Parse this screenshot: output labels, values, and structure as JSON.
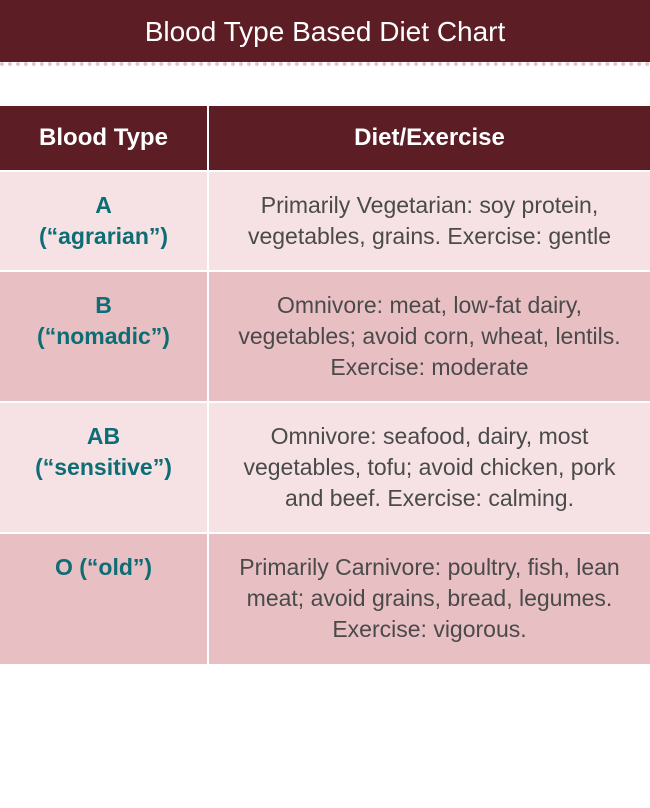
{
  "title": "Blood Type Based Diet Chart",
  "colors": {
    "title_bg": "#5c1d24",
    "title_text": "#ffffff",
    "divider": "#e9c5c9",
    "header_bg": "#5c1d24",
    "header_text": "#ffffff",
    "header_border": "#ffffff",
    "row_light": "#f6e2e4",
    "row_dark": "#e8bfc3",
    "cell_border": "#ffffff",
    "type_text": "#0d6d74",
    "diet_text": "#4a4a4a"
  },
  "table": {
    "columns": [
      "Blood Type",
      "Diet/Exercise"
    ],
    "rows": [
      {
        "type": "A\n(“agrarian”)",
        "diet": "Primarily Vegetarian: soy protein, vegetables, grains. Exercise: gentle"
      },
      {
        "type": "B\n(“nomadic”)",
        "diet": "Omnivore: meat, low-fat dairy, vegetables; avoid corn, wheat, lentils. Exercise: moderate"
      },
      {
        "type": "AB\n(“sensitive”)",
        "diet": "Omnivore: seafood, dairy, most vegetables, tofu; avoid chicken, pork and beef. Exercise: calming."
      },
      {
        "type": "O (“old”)",
        "diet": "Primarily Carnivore: poultry, fish, lean meat; avoid grains, bread, legumes. Exercise: vigorous."
      }
    ]
  },
  "layout": {
    "title_fontsize": 28,
    "header_fontsize": 24,
    "cell_fontsize": 23,
    "col_widths_pct": [
      32,
      68
    ],
    "cell_border_width": 2
  }
}
